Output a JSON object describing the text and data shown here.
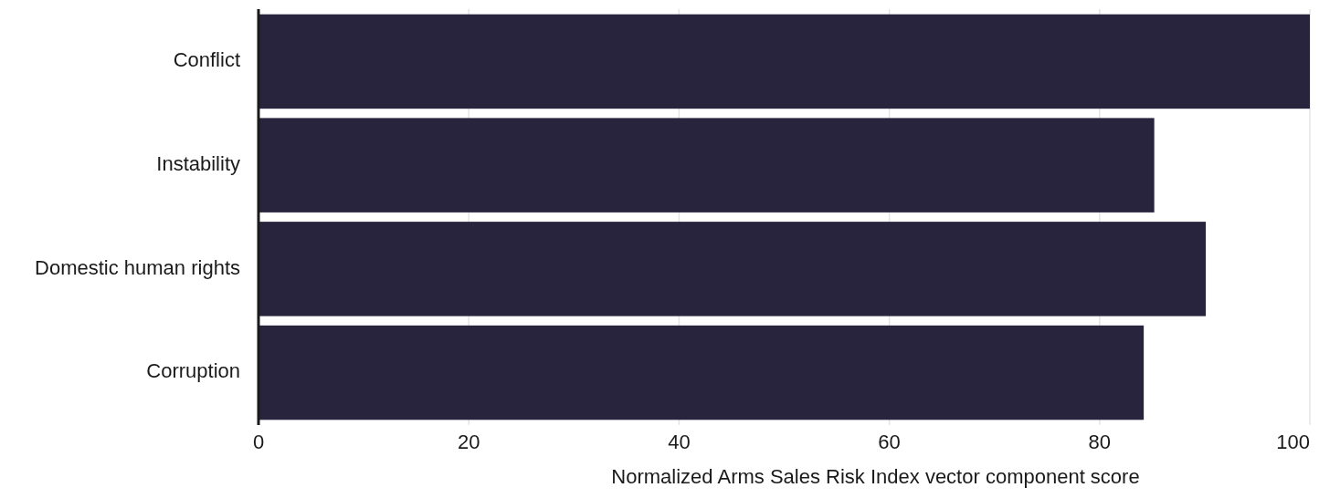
{
  "chart_data": {
    "type": "bar",
    "orientation": "horizontal",
    "xlabel": "Normalized Arms Sales Risk Index vector component score",
    "categories": [
      "Conflict",
      "Instability",
      "Domestic human rights",
      "Corruption"
    ],
    "values": [
      100,
      85.2,
      90.1,
      84.2
    ],
    "color": "#29243d",
    "xlim": [
      0,
      100
    ],
    "xticks": [
      0,
      20,
      40,
      60,
      80,
      100
    ],
    "grid": "x"
  }
}
